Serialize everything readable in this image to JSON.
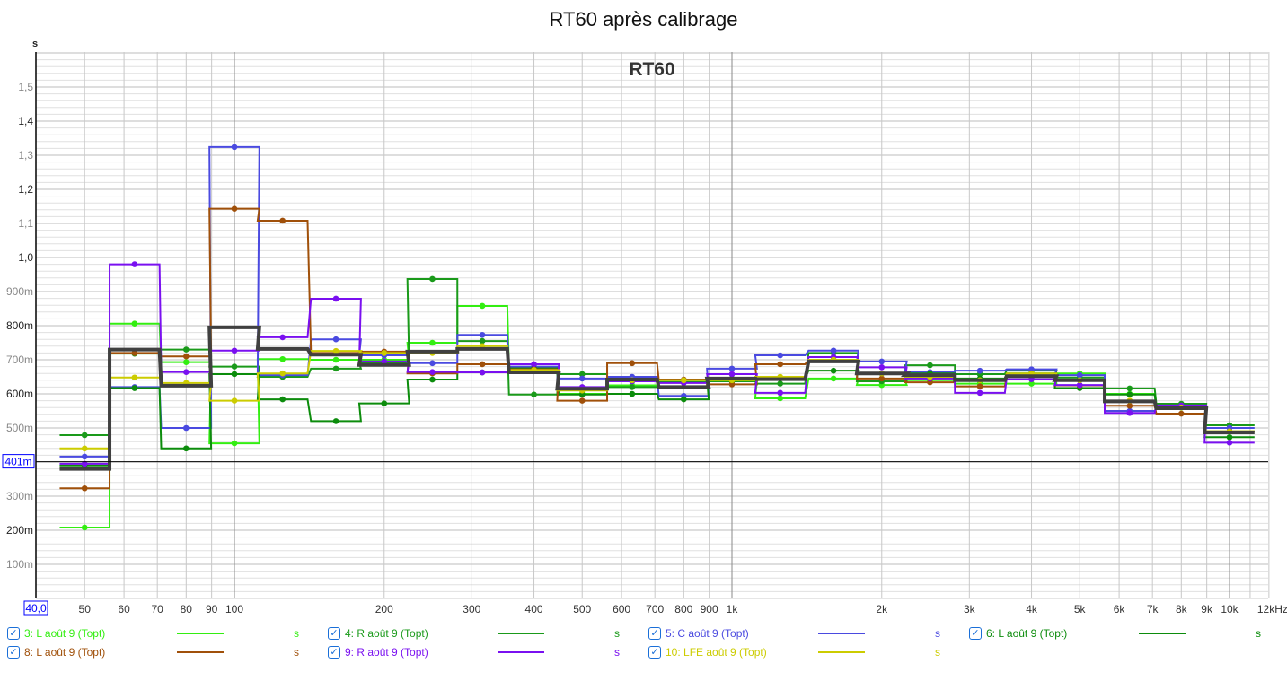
{
  "title": "RT60 après calibrage",
  "chart_data": {
    "type": "line",
    "title": "RT60 après calibrage",
    "inner_title": "RT60",
    "ylabel": "s",
    "xlabel": "Hz",
    "ylim": [
      0,
      1.6
    ],
    "xlim": [
      40,
      12000
    ],
    "xscale": "log",
    "grid": true,
    "cursor": {
      "y_label": "401m",
      "x_label": "40,0",
      "y_value": 0.401
    },
    "yticks": [
      {
        "v": 0.1,
        "t": "100m"
      },
      {
        "v": 0.2,
        "t": "200m"
      },
      {
        "v": 0.3,
        "t": "300m"
      },
      {
        "v": 0.5,
        "t": "500m"
      },
      {
        "v": 0.6,
        "t": "600m"
      },
      {
        "v": 0.7,
        "t": "700m"
      },
      {
        "v": 0.8,
        "t": "800m"
      },
      {
        "v": 0.9,
        "t": "900m"
      },
      {
        "v": 1.0,
        "t": "1,0"
      },
      {
        "v": 1.1,
        "t": "1,1"
      },
      {
        "v": 1.2,
        "t": "1,2"
      },
      {
        "v": 1.3,
        "t": "1,3"
      },
      {
        "v": 1.4,
        "t": "1,4"
      },
      {
        "v": 1.5,
        "t": "1,5"
      }
    ],
    "xticks": [
      {
        "v": 50,
        "t": "50"
      },
      {
        "v": 60,
        "t": "60"
      },
      {
        "v": 70,
        "t": "70"
      },
      {
        "v": 80,
        "t": "80"
      },
      {
        "v": 90,
        "t": "90"
      },
      {
        "v": 100,
        "t": "100"
      },
      {
        "v": 200,
        "t": "200"
      },
      {
        "v": 300,
        "t": "300"
      },
      {
        "v": 400,
        "t": "400"
      },
      {
        "v": 500,
        "t": "500"
      },
      {
        "v": 600,
        "t": "600"
      },
      {
        "v": 700,
        "t": "700"
      },
      {
        "v": 800,
        "t": "800"
      },
      {
        "v": 900,
        "t": "900"
      },
      {
        "v": 1000,
        "t": "1k"
      },
      {
        "v": 2000,
        "t": "2k"
      },
      {
        "v": 3000,
        "t": "3k"
      },
      {
        "v": 4000,
        "t": "4k"
      },
      {
        "v": 5000,
        "t": "5k"
      },
      {
        "v": 6000,
        "t": "6k"
      },
      {
        "v": 7000,
        "t": "7k"
      },
      {
        "v": 8000,
        "t": "8k"
      },
      {
        "v": 9000,
        "t": "9k"
      },
      {
        "v": 10000,
        "t": "10k"
      },
      {
        "v": 12000,
        "t": "12kHz"
      }
    ],
    "bands": [
      50,
      63,
      80,
      100,
      125,
      160,
      200,
      250,
      315,
      400,
      500,
      630,
      800,
      1000,
      1250,
      1600,
      2000,
      2500,
      3150,
      4000,
      5000,
      6300,
      8000,
      10000
    ],
    "series": [
      {
        "name": "3: L août 9 (Topt)",
        "unit": "s",
        "color": "#33ee11",
        "width": 2,
        "values": [
          0.208,
          0.806,
          0.693,
          0.455,
          0.702,
          0.7,
          0.7,
          0.75,
          0.858,
          0.675,
          0.6,
          0.625,
          0.64,
          0.64,
          0.587,
          0.645,
          0.626,
          0.64,
          0.63,
          0.63,
          0.66,
          0.6,
          0.56,
          0.49
        ]
      },
      {
        "name": "4: R août 9 (Topt)",
        "unit": "s",
        "color": "#1a9a1a",
        "width": 2,
        "values": [
          0.479,
          0.718,
          0.73,
          0.68,
          0.65,
          0.674,
          0.69,
          0.937,
          0.755,
          0.598,
          0.658,
          0.62,
          0.635,
          0.637,
          0.63,
          0.72,
          0.637,
          0.684,
          0.658,
          0.668,
          0.648,
          0.616,
          0.571,
          0.508
        ]
      },
      {
        "name": "5: C août 9 (Topt)",
        "unit": "s",
        "color": "#4a4ae0",
        "width": 2,
        "values": [
          0.416,
          0.62,
          0.5,
          1.324,
          0.655,
          0.76,
          0.713,
          0.69,
          0.773,
          0.68,
          0.645,
          0.65,
          0.594,
          0.674,
          0.713,
          0.727,
          0.695,
          0.664,
          0.668,
          0.672,
          0.655,
          0.55,
          0.56,
          0.5
        ]
      },
      {
        "name": "6: L août 9 (Topt)",
        "unit": "s",
        "color": "#0c8c0c",
        "width": 2,
        "values": [
          0.39,
          0.617,
          0.44,
          0.658,
          0.584,
          0.52,
          0.572,
          0.642,
          0.663,
          0.675,
          0.598,
          0.6,
          0.584,
          0.645,
          0.645,
          0.668,
          0.66,
          0.66,
          0.645,
          0.66,
          0.617,
          0.598,
          0.56,
          0.473
        ]
      },
      {
        "name": "8: L août 9 (Topt)",
        "unit": "s",
        "color": "#a0500a",
        "width": 2,
        "values": [
          0.323,
          0.72,
          0.71,
          1.143,
          1.108,
          0.72,
          0.724,
          0.66,
          0.687,
          0.672,
          0.58,
          0.69,
          0.642,
          0.628,
          0.687,
          0.7,
          0.645,
          0.634,
          0.622,
          0.65,
          0.625,
          0.565,
          0.542,
          0.49
        ]
      },
      {
        "name": "9: R août 9 (Topt)",
        "unit": "s",
        "color": "#7a10f0",
        "width": 2,
        "values": [
          0.395,
          0.98,
          0.664,
          0.727,
          0.766,
          0.879,
          0.695,
          0.664,
          0.663,
          0.687,
          0.62,
          0.637,
          0.632,
          0.658,
          0.603,
          0.708,
          0.678,
          0.645,
          0.603,
          0.643,
          0.626,
          0.544,
          0.566,
          0.457
        ]
      },
      {
        "name": "10: LFE août 9 (Topt)",
        "unit": "s",
        "color": "#cccc00",
        "width": 2,
        "values": [
          0.44,
          0.648,
          0.632,
          0.58,
          0.66,
          0.726,
          0.72,
          0.72,
          0.74,
          0.67,
          0.61,
          0.64,
          0.64,
          0.64,
          0.65,
          0.7,
          0.66,
          0.65,
          0.64,
          0.66,
          0.64,
          0.58,
          0.56,
          0.49
        ]
      }
    ],
    "average": {
      "color": "#404040",
      "values": [
        0.38,
        0.73,
        0.624,
        0.795,
        0.732,
        0.715,
        0.685,
        0.724,
        0.732,
        0.663,
        0.615,
        0.642,
        0.62,
        0.645,
        0.643,
        0.695,
        0.66,
        0.655,
        0.64,
        0.652,
        0.64,
        0.578,
        0.558,
        0.487
      ]
    }
  }
}
